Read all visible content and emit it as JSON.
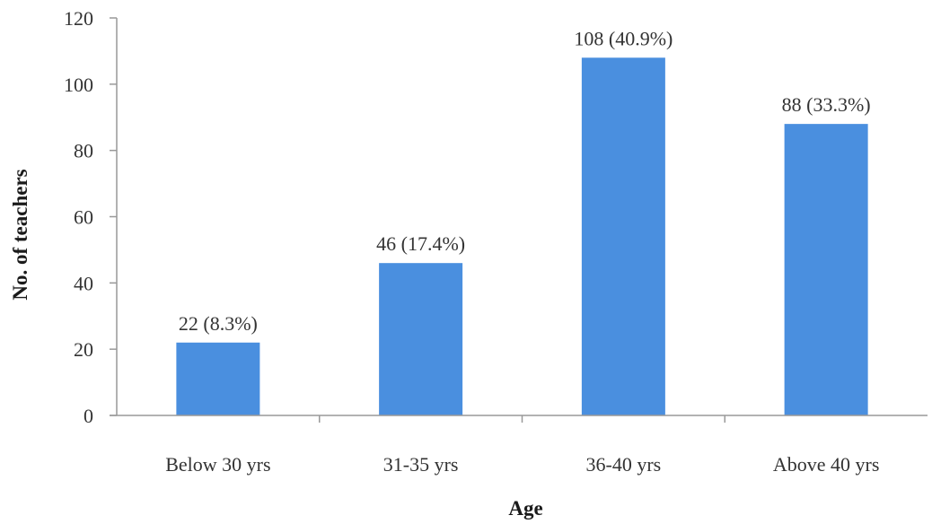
{
  "chart_data": {
    "type": "bar",
    "title": "",
    "xlabel": "Age",
    "ylabel": "No. of teachers",
    "categories": [
      "Below 30 yrs",
      "31-35 yrs",
      "36-40 yrs",
      "Above 40 yrs"
    ],
    "values": [
      22,
      46,
      108,
      88
    ],
    "data_labels": [
      "22 (8.3%)",
      "46 (17.4%)",
      "108 (40.9%)",
      "88 (33.3%)"
    ],
    "ylim": [
      0,
      120
    ],
    "yticks": [
      0,
      20,
      40,
      60,
      80,
      100,
      120
    ],
    "ytick_labels": [
      "0",
      "20",
      "40",
      "60",
      "80",
      "100",
      "120"
    ],
    "grid": false,
    "legend": "none",
    "bar_color": "#4a8fdf"
  }
}
